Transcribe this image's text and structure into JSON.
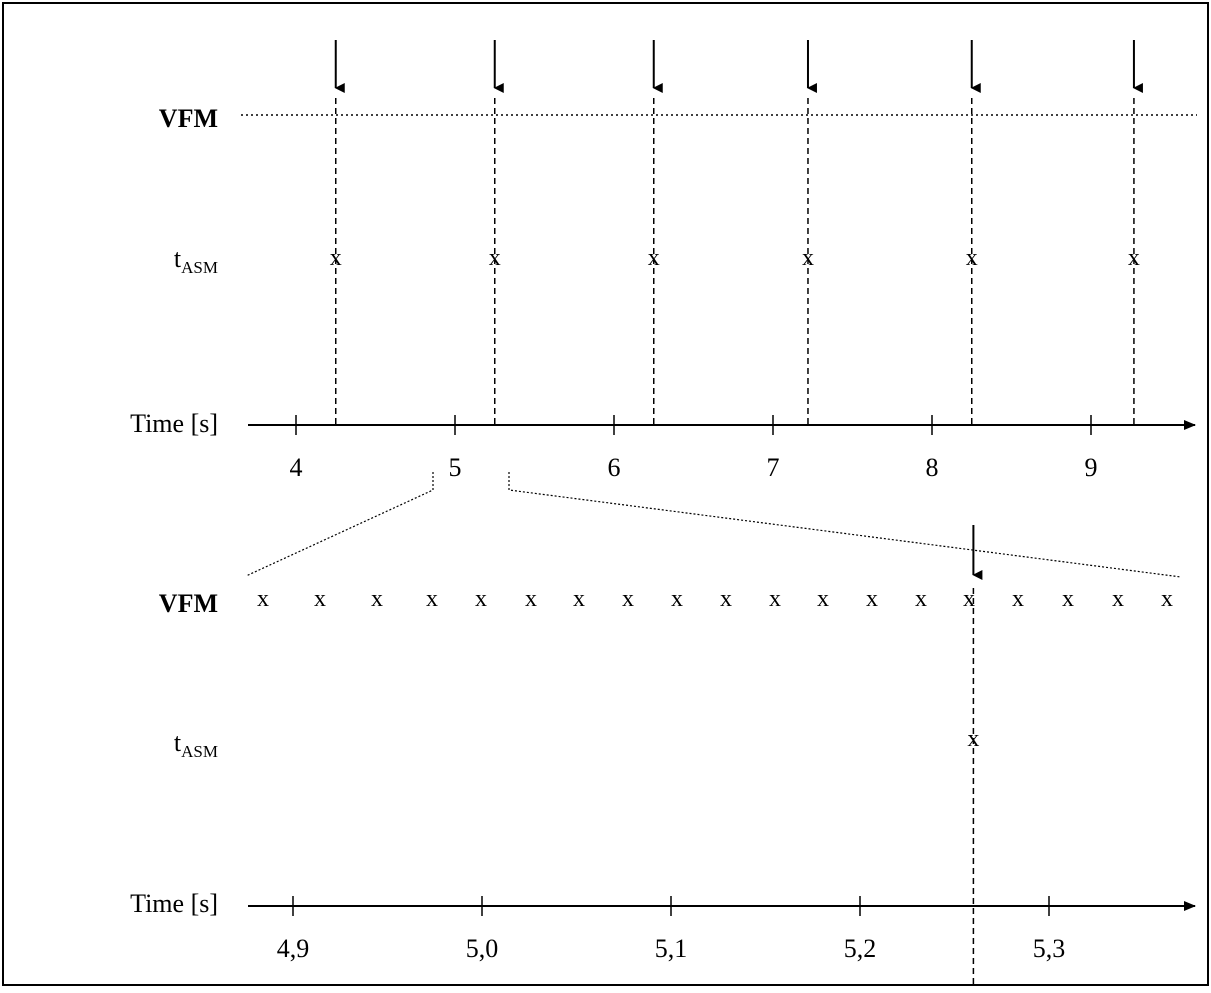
{
  "top_panel": {
    "vfm_label": "VFM",
    "t_label_main": "t",
    "t_label_sub": "ASM",
    "axis_label": "Time [s]",
    "tick_labels": [
      "4",
      "5",
      "6",
      "7",
      "8",
      "9"
    ],
    "event_times": [
      4.25,
      5.25,
      6.25,
      7.22,
      8.25,
      9.27
    ],
    "x_marker": "x"
  },
  "bottom_panel": {
    "vfm_label": "VFM",
    "t_label_main": "t",
    "t_label_sub": "ASM",
    "axis_label": "Time [s]",
    "tick_labels": [
      "4,9",
      "5,0",
      "5,1",
      "5,2",
      "5,3"
    ],
    "vfm_marker": "x",
    "vfm_sample_count": 19,
    "event_times": [
      5.26
    ],
    "x_marker": "x"
  }
}
